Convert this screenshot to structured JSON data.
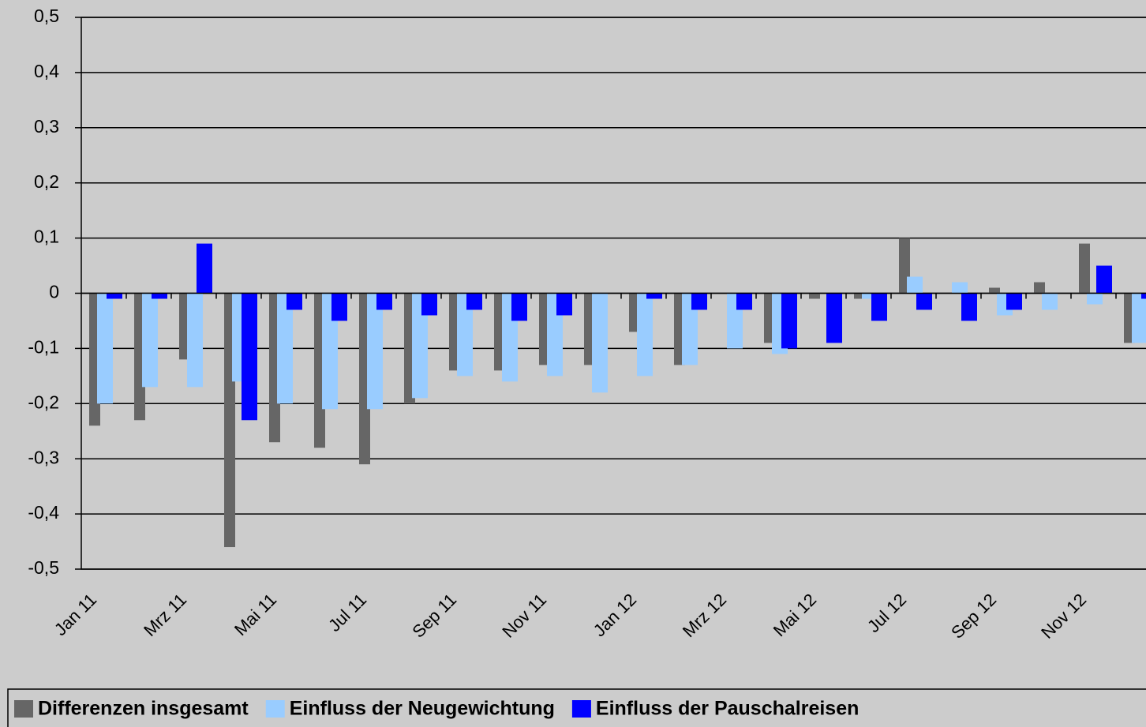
{
  "chart_data": {
    "type": "bar",
    "categories": [
      "Jan 11",
      null,
      "Mrz 11",
      null,
      "Mai 11",
      null,
      "Jul 11",
      null,
      "Sep 11",
      null,
      "Nov 11",
      null,
      "Jan 12",
      null,
      "Mrz 12",
      null,
      "Mai 12",
      null,
      "Jul 12",
      null,
      "Sep 12",
      null,
      "Nov 12",
      null
    ],
    "series": [
      {
        "name": "Differenzen insgesamt",
        "color": "#666666",
        "values": [
          -0.24,
          -0.23,
          -0.12,
          -0.46,
          -0.27,
          -0.28,
          -0.31,
          -0.2,
          -0.14,
          -0.14,
          -0.13,
          -0.13,
          -0.07,
          -0.13,
          0,
          -0.09,
          -0.01,
          -0.01,
          0.1,
          0,
          0.01,
          0.02,
          0.09,
          -0.09
        ]
      },
      {
        "name": "Einfluss der Neugewichtung",
        "color": "#99ccff",
        "values": [
          -0.2,
          -0.17,
          -0.17,
          -0.16,
          -0.2,
          -0.21,
          -0.21,
          -0.19,
          -0.15,
          -0.16,
          -0.15,
          -0.18,
          -0.15,
          -0.13,
          -0.1,
          -0.11,
          0,
          -0.01,
          0.03,
          0.02,
          -0.04,
          -0.03,
          -0.02,
          -0.09
        ]
      },
      {
        "name": "Einfluss der Pauschalreisen",
        "color": "#0000ff",
        "values": [
          -0.01,
          -0.01,
          0.09,
          -0.23,
          -0.03,
          -0.05,
          -0.03,
          -0.04,
          -0.03,
          -0.05,
          -0.04,
          0,
          -0.01,
          -0.03,
          -0.03,
          -0.1,
          -0.09,
          -0.05,
          -0.03,
          -0.05,
          -0.03,
          0,
          0.05,
          -0.01
        ]
      }
    ],
    "ylim": [
      -0.5,
      0.5
    ],
    "yticks": [
      {
        "value": 0.5,
        "label": "0,5"
      },
      {
        "value": 0.4,
        "label": "0,4"
      },
      {
        "value": 0.3,
        "label": "0,3"
      },
      {
        "value": 0.2,
        "label": "0,2"
      },
      {
        "value": 0.1,
        "label": "0,1"
      },
      0,
      {
        "value": -0.1,
        "label": "-0,1"
      },
      {
        "value": -0.2,
        "label": "-0,2"
      },
      {
        "value": -0.3,
        "label": "-0,3"
      },
      {
        "value": -0.4,
        "label": "-0,4"
      },
      {
        "value": -0.5,
        "label": "-0,5"
      }
    ],
    "grid": true,
    "legend": "bottom"
  }
}
